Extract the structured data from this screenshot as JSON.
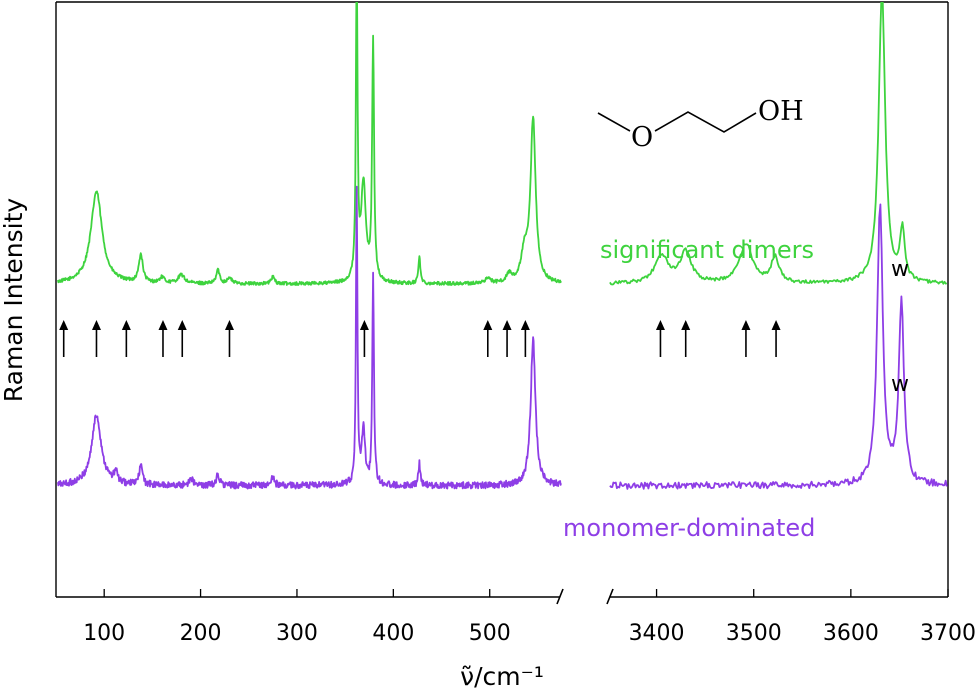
{
  "chart_data": {
    "type": "line",
    "title": "",
    "xlabel": "ν̃/cm⁻¹",
    "ylabel": "Raman Intensity",
    "axis_break": true,
    "x_segments": [
      {
        "xlim": [
          50,
          575
        ],
        "ticks": [
          100,
          200,
          300,
          400,
          500
        ]
      },
      {
        "xlim": [
          3350,
          3700
        ],
        "ticks": [
          3400,
          3500,
          3600,
          3700
        ]
      }
    ],
    "tick_labels": [
      "100",
      "200",
      "300",
      "400",
      "500",
      "3400",
      "3500",
      "3600",
      "3700"
    ],
    "y_ticks": false,
    "grid": false,
    "colors": {
      "dimers": "#3ed33e",
      "monomer": "#8e3ee6"
    },
    "series": [
      {
        "name": "significant dimers",
        "color": "#3ed33e",
        "baseline": 0.15,
        "noise": 0.006,
        "peaks": [
          {
            "x": 92,
            "h": 0.33,
            "w": 7
          },
          {
            "x": 138,
            "h": 0.1,
            "w": 2.5
          },
          {
            "x": 160,
            "h": 0.02,
            "w": 3
          },
          {
            "x": 180,
            "h": 0.03,
            "w": 4
          },
          {
            "x": 218,
            "h": 0.05,
            "w": 2
          },
          {
            "x": 230,
            "h": 0.02,
            "w": 3
          },
          {
            "x": 275,
            "h": 0.025,
            "w": 2
          },
          {
            "x": 362,
            "h": 1.1,
            "w": 1.0
          },
          {
            "x": 369,
            "h": 0.35,
            "w": 3
          },
          {
            "x": 379,
            "h": 0.85,
            "w": 1.2
          },
          {
            "x": 427,
            "h": 0.1,
            "w": 1.2
          },
          {
            "x": 498,
            "h": 0.02,
            "w": 3
          },
          {
            "x": 520,
            "h": 0.03,
            "w": 3
          },
          {
            "x": 536,
            "h": 0.1,
            "w": 4
          },
          {
            "x": 545,
            "h": 0.58,
            "w": 3.2
          },
          {
            "x": 3405,
            "h": 0.1,
            "w": 8
          },
          {
            "x": 3430,
            "h": 0.11,
            "w": 7
          },
          {
            "x": 3492,
            "h": 0.14,
            "w": 8
          },
          {
            "x": 3522,
            "h": 0.09,
            "w": 5
          },
          {
            "x": 3632,
            "h": 1.05,
            "w": 4
          },
          {
            "x": 3653,
            "h": 0.18,
            "w": 3
          }
        ],
        "annotation": "w"
      },
      {
        "name": "monomer-dominated",
        "color": "#8e3ee6",
        "baseline": -0.57,
        "noise": 0.012,
        "peaks": [
          {
            "x": 92,
            "h": 0.25,
            "w": 6
          },
          {
            "x": 112,
            "h": 0.04,
            "w": 2
          },
          {
            "x": 138,
            "h": 0.07,
            "w": 2
          },
          {
            "x": 190,
            "h": 0.03,
            "w": 2
          },
          {
            "x": 218,
            "h": 0.04,
            "w": 2
          },
          {
            "x": 275,
            "h": 0.03,
            "w": 2
          },
          {
            "x": 362,
            "h": 1.05,
            "w": 0.9
          },
          {
            "x": 369,
            "h": 0.2,
            "w": 2
          },
          {
            "x": 379,
            "h": 0.75,
            "w": 1.0
          },
          {
            "x": 427,
            "h": 0.08,
            "w": 1.2
          },
          {
            "x": 545,
            "h": 0.52,
            "w": 3
          },
          {
            "x": 3630,
            "h": 1.0,
            "w": 3.5
          },
          {
            "x": 3652,
            "h": 0.65,
            "w": 3.2
          }
        ],
        "annotation": "w"
      }
    ],
    "arrows_x": [
      58,
      92,
      123,
      161,
      181,
      230,
      370,
      498,
      518,
      537,
      3404,
      3430,
      3492,
      3523
    ],
    "structure_labels": [
      "O",
      "OH"
    ]
  }
}
